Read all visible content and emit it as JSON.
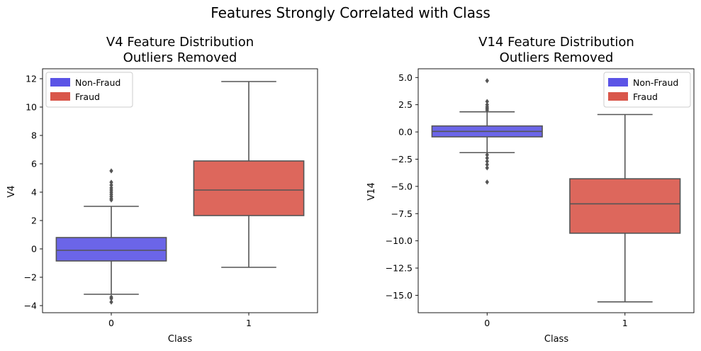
{
  "suptitle": "Features Strongly Correlated with Class",
  "colors": {
    "nonfraud": "#5b54e6",
    "fraud": "#d9564a",
    "line": "#555555"
  },
  "chart_data": [
    {
      "type": "box",
      "title_line1": "V4 Feature Distribution",
      "title_line2": "Outliers Removed",
      "xlabel": "Class",
      "ylabel": "V4",
      "categories": [
        "0",
        "1"
      ],
      "ylim": [
        -4.5,
        12.7
      ],
      "yticks": [
        -4,
        -2,
        0,
        2,
        4,
        6,
        8,
        10,
        12
      ],
      "ytick_labels": [
        "−4",
        "−2",
        "0",
        "2",
        "4",
        "6",
        "8",
        "10",
        "12"
      ],
      "legend": {
        "position": "upper-left",
        "entries": [
          "Non-Fraud",
          "Fraud"
        ]
      },
      "boxes": [
        {
          "category": "0",
          "series": "Non-Fraud",
          "whisker_low": -3.2,
          "q1": -0.85,
          "median": -0.1,
          "q3": 0.8,
          "whisker_high": 3.0,
          "outliers": [
            -3.4,
            -3.5,
            -3.75,
            3.45,
            3.55,
            3.7,
            3.85,
            4.0,
            4.15,
            4.3,
            4.5,
            4.7,
            5.5
          ]
        },
        {
          "category": "1",
          "series": "Fraud",
          "whisker_low": -1.3,
          "q1": 2.35,
          "median": 4.15,
          "q3": 6.2,
          "whisker_high": 11.8,
          "outliers": []
        }
      ]
    },
    {
      "type": "box",
      "title_line1": "V14 Feature Distribution",
      "title_line2": "Outliers Removed",
      "xlabel": "Class",
      "ylabel": "V14",
      "categories": [
        "0",
        "1"
      ],
      "ylim": [
        -16.6,
        5.8
      ],
      "yticks": [
        5.0,
        2.5,
        0.0,
        -2.5,
        -5.0,
        -7.5,
        -10.0,
        -12.5,
        -15.0
      ],
      "ytick_labels": [
        "5.0",
        "2.5",
        "0.0",
        "−2.5",
        "−5.0",
        "−7.5",
        "−10.0",
        "−12.5",
        "−15.0"
      ],
      "legend": {
        "position": "upper-right",
        "entries": [
          "Non-Fraud",
          "Fraud"
        ]
      },
      "boxes": [
        {
          "category": "0",
          "series": "Non-Fraud",
          "whisker_low": -1.9,
          "q1": -0.45,
          "median": 0.05,
          "q3": 0.55,
          "whisker_high": 1.85,
          "outliers": [
            4.7,
            2.8,
            2.5,
            2.3,
            2.15,
            2.0,
            -2.1,
            -2.4,
            -2.7,
            -3.0,
            -3.3,
            -4.6
          ]
        },
        {
          "category": "1",
          "series": "Fraud",
          "whisker_low": -15.6,
          "q1": -9.3,
          "median": -6.6,
          "q3": -4.3,
          "whisker_high": 1.6,
          "outliers": []
        }
      ]
    }
  ]
}
